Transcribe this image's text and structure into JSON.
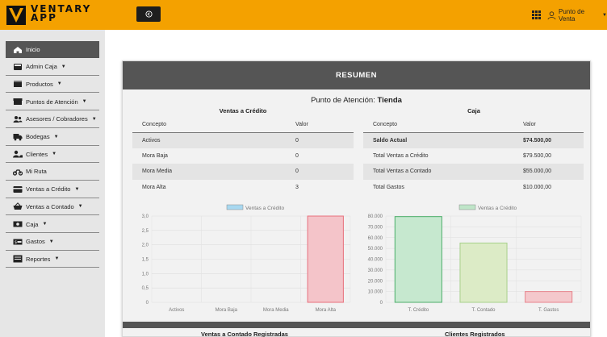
{
  "app": {
    "logo_top": "VENTARY",
    "logo_bottom": "APP"
  },
  "topbar": {
    "toggle_icon": "arrow-circle-left-icon",
    "user_label": "Punto de Venta"
  },
  "sidebar": {
    "items": [
      {
        "label": "Inicio",
        "icon": "home-icon",
        "caret": false,
        "active": true
      },
      {
        "label": "Admin Caja",
        "icon": "cash-register-icon",
        "caret": true
      },
      {
        "label": "Productos",
        "icon": "box-icon",
        "caret": true
      },
      {
        "label": "Puntos de Atención",
        "icon": "store-icon",
        "caret": true
      },
      {
        "label": "Asesores / Cobradores",
        "icon": "users-icon",
        "caret": true
      },
      {
        "label": "Bodegas",
        "icon": "truck-icon",
        "caret": true
      },
      {
        "label": "Clientes",
        "icon": "user-group-icon",
        "caret": true
      },
      {
        "label": "Mi Ruta",
        "icon": "motorcycle-icon",
        "caret": false
      },
      {
        "label": "Ventas a Crédito",
        "icon": "credit-card-icon",
        "caret": true
      },
      {
        "label": "Ventas a Contado",
        "icon": "basket-icon",
        "caret": true
      },
      {
        "label": "Caja",
        "icon": "cash-icon",
        "caret": true
      },
      {
        "label": "Gastos",
        "icon": "money-bill-icon",
        "caret": true
      },
      {
        "label": "Reportes",
        "icon": "report-icon",
        "caret": true
      }
    ]
  },
  "summary": {
    "header": "RESUMEN",
    "punto_label": "Punto de Atención:",
    "punto_value": "Tienda",
    "credit": {
      "title": "Ventas a Crédito",
      "columns": [
        "Concepto",
        "Valor"
      ],
      "rows": [
        [
          "Activos",
          "0"
        ],
        [
          "Mora Baja",
          "0"
        ],
        [
          "Mora Media",
          "0"
        ],
        [
          "Mora Alta",
          "3"
        ]
      ]
    },
    "caja": {
      "title": "Caja",
      "columns": [
        "Concepto",
        "Valor"
      ],
      "rows": [
        [
          "Saldo Actual",
          "$74.500,00"
        ],
        [
          "Total Ventas a Crédito",
          "$79.500,00"
        ],
        [
          "Total Ventas a Contado",
          "$55.000,00"
        ],
        [
          "Total Gastos",
          "$10.000,00"
        ]
      ]
    },
    "bottom_titles": [
      "Ventas a Contado Registradas",
      "Clientes Registrados"
    ]
  },
  "chart_data": [
    {
      "type": "bar",
      "categories": [
        "Activos",
        "Mora Baja",
        "Mora Media",
        "Mora Alta"
      ],
      "series": [
        {
          "name": "Ventas a Crédito",
          "values": [
            0,
            0,
            0,
            3
          ]
        }
      ],
      "ylim": [
        0,
        3
      ],
      "yticks": [
        "0",
        "0,5",
        "1,0",
        "1,5",
        "2,0",
        "2,5",
        "3,0"
      ],
      "legend": "top",
      "grid": true,
      "legend_color": "#a8d8f0",
      "bar_fill": "#f4c4c9",
      "bar_stroke": "#e8707c"
    },
    {
      "type": "bar",
      "categories": [
        "T. Crédito",
        "T. Contado",
        "T. Gastos"
      ],
      "series": [
        {
          "name": "Ventas a Crédito",
          "values": [
            79500,
            55000,
            10000
          ]
        }
      ],
      "ylim": [
        0,
        80000
      ],
      "yticks": [
        "0",
        "10.000",
        "20.000",
        "30.000",
        "40.000",
        "50.000",
        "60.000",
        "70.000",
        "80.000"
      ],
      "legend": "top",
      "grid": true,
      "legend_color": "#bfe5c8",
      "bar_fills": [
        "#c6e8cf",
        "#dcebc6",
        "#f4c8cc"
      ],
      "bar_strokes": [
        "#4cae6a",
        "#a6d08a",
        "#e8838c"
      ]
    }
  ]
}
